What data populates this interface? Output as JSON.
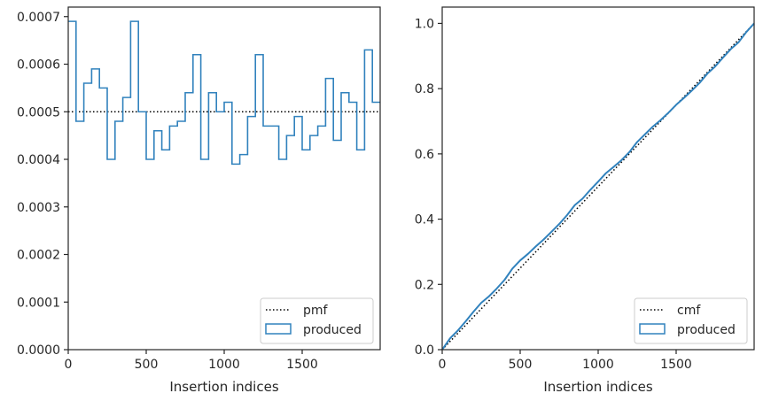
{
  "colors": {
    "produced": "#3182bd",
    "reference": "#000000",
    "axes": "#262626"
  },
  "chart_data": [
    {
      "type": "line",
      "subtype": "step-histogram",
      "title": "",
      "xlabel": "Insertion indices",
      "ylabel": "",
      "xlim": [
        0,
        2000
      ],
      "ylim": [
        0,
        0.00072
      ],
      "xticks": [
        0,
        500,
        1000,
        1500
      ],
      "xtick_labels": [
        "0",
        "500",
        "1000",
        "1500"
      ],
      "yticks": [
        0,
        0.0001,
        0.0002,
        0.0003,
        0.0004,
        0.0005,
        0.0006,
        0.0007
      ],
      "ytick_labels": [
        "0.0000",
        "0.0001",
        "0.0002",
        "0.0003",
        "0.0004",
        "0.0005",
        "0.0006",
        "0.0007"
      ],
      "legend_position": "lower-right",
      "grid": false,
      "series": [
        {
          "name": "pmf",
          "style": "dotted",
          "x": [
            0,
            2000
          ],
          "y": [
            0.0005,
            0.0005
          ]
        },
        {
          "name": "produced",
          "style": "step",
          "bin_edges": [
            0,
            50,
            100,
            150,
            200,
            250,
            300,
            350,
            400,
            450,
            500,
            550,
            600,
            650,
            700,
            750,
            800,
            850,
            900,
            950,
            1000,
            1050,
            1100,
            1150,
            1200,
            1250,
            1300,
            1350,
            1400,
            1450,
            1500,
            1550,
            1600,
            1650,
            1700,
            1750,
            1800,
            1850,
            1900,
            1950,
            2000
          ],
          "values": [
            0.00069,
            0.00048,
            0.00056,
            0.00059,
            0.00055,
            0.0004,
            0.00048,
            0.00053,
            0.00069,
            0.0005,
            0.0004,
            0.00046,
            0.00042,
            0.00047,
            0.00048,
            0.00054,
            0.00062,
            0.0004,
            0.00054,
            0.0005,
            0.00052,
            0.00039,
            0.00041,
            0.00049,
            0.00062,
            0.00047,
            0.00047,
            0.0004,
            0.00045,
            0.00049,
            0.00042,
            0.00045,
            0.00047,
            0.00057,
            0.00044,
            0.00054,
            0.00052,
            0.00042,
            0.00063,
            0.00052
          ]
        }
      ]
    },
    {
      "type": "line",
      "subtype": "cumulative",
      "title": "",
      "xlabel": "Insertion indices",
      "ylabel": "",
      "xlim": [
        0,
        2000
      ],
      "ylim": [
        0,
        1.05
      ],
      "xticks": [
        0,
        500,
        1000,
        1500
      ],
      "xtick_labels": [
        "0",
        "500",
        "1000",
        "1500"
      ],
      "yticks": [
        0,
        0.2,
        0.4,
        0.6,
        0.8,
        1.0
      ],
      "ytick_labels": [
        "0.0",
        "0.2",
        "0.4",
        "0.6",
        "0.8",
        "1.0"
      ],
      "legend_position": "lower-right",
      "grid": false,
      "series": [
        {
          "name": "cmf",
          "style": "dotted",
          "x": [
            0,
            2000
          ],
          "y": [
            0,
            1
          ]
        },
        {
          "name": "produced",
          "style": "line",
          "x": [
            0,
            50,
            100,
            150,
            200,
            250,
            300,
            350,
            400,
            450,
            500,
            550,
            600,
            650,
            700,
            750,
            800,
            850,
            900,
            950,
            1000,
            1050,
            1100,
            1150,
            1200,
            1250,
            1300,
            1350,
            1400,
            1450,
            1500,
            1550,
            1600,
            1650,
            1700,
            1750,
            1800,
            1850,
            1900,
            1950,
            2000
          ],
          "y": [
            0,
            0.0345,
            0.0585,
            0.0865,
            0.116,
            0.1435,
            0.1635,
            0.1875,
            0.214,
            0.2485,
            0.2735,
            0.2935,
            0.3165,
            0.3375,
            0.361,
            0.385,
            0.412,
            0.443,
            0.463,
            0.49,
            0.515,
            0.541,
            0.5605,
            0.581,
            0.6055,
            0.6365,
            0.66,
            0.6835,
            0.7035,
            0.726,
            0.7505,
            0.7715,
            0.794,
            0.8175,
            0.846,
            0.868,
            0.895,
            0.921,
            0.942,
            0.9735,
            1.0
          ]
        }
      ]
    }
  ]
}
